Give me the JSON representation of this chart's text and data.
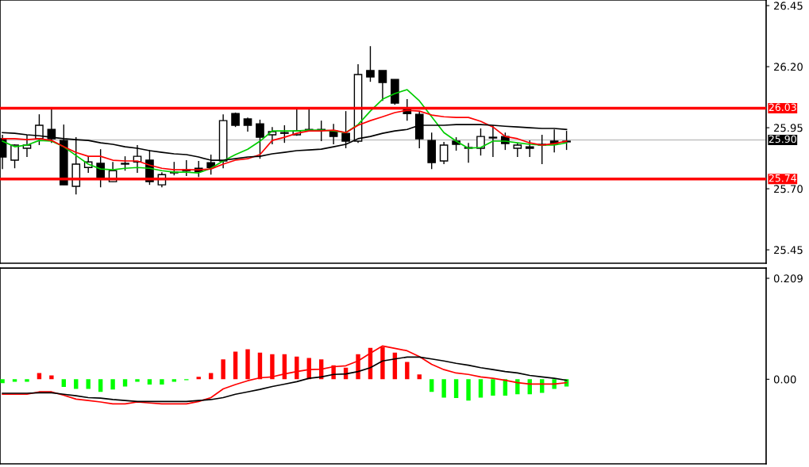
{
  "chart_data": [
    {
      "type": "candlestick",
      "categories": [
        null,
        null,
        null,
        null,
        null,
        null,
        null,
        null,
        null,
        null,
        null,
        null,
        null,
        null,
        null,
        null,
        null,
        null,
        null,
        null,
        null,
        null,
        null,
        null,
        null,
        null,
        null,
        null,
        null,
        null,
        null,
        null,
        null,
        null,
        null,
        null,
        null,
        null,
        null,
        null,
        null,
        null,
        null,
        null,
        null,
        null,
        null
      ],
      "ohlc": [
        [
          25.905,
          25.921,
          25.781,
          25.83
        ],
        [
          25.817,
          25.882,
          25.784,
          25.879
        ],
        [
          25.866,
          25.921,
          25.83,
          25.879
        ],
        [
          25.905,
          26.005,
          25.879,
          25.96
        ],
        [
          25.943,
          26.028,
          25.888,
          25.905
        ],
        [
          25.898,
          25.963,
          25.716,
          25.716
        ],
        [
          25.71,
          25.911,
          25.677,
          25.801
        ],
        [
          25.787,
          25.833,
          25.765,
          25.81
        ],
        [
          25.804,
          25.862,
          25.706,
          25.748
        ],
        [
          25.729,
          25.81,
          25.729,
          25.774
        ],
        [
          25.804,
          25.833,
          25.774,
          25.801
        ],
        [
          25.81,
          25.879,
          25.765,
          25.833
        ],
        [
          25.817,
          25.859,
          25.716,
          25.729
        ],
        [
          25.716,
          25.768,
          25.706,
          25.758
        ],
        [
          25.768,
          25.81,
          25.755,
          25.765
        ],
        [
          25.778,
          25.817,
          25.752,
          25.774
        ],
        [
          25.784,
          25.814,
          25.748,
          25.771
        ],
        [
          25.807,
          25.84,
          25.758,
          25.787
        ],
        [
          25.814,
          26.005,
          25.784,
          25.979
        ],
        [
          26.008,
          26.012,
          25.953,
          25.96
        ],
        [
          25.986,
          25.992,
          25.934,
          25.96
        ],
        [
          25.966,
          25.983,
          25.823,
          25.911
        ],
        [
          25.921,
          25.953,
          25.882,
          25.934
        ],
        [
          25.927,
          25.96,
          25.888,
          25.93
        ],
        [
          25.921,
          26.028,
          25.917,
          25.937
        ],
        [
          25.943,
          26.028,
          25.937,
          25.94
        ],
        [
          25.94,
          25.979,
          25.895,
          25.943
        ],
        [
          25.937,
          25.966,
          25.882,
          25.914
        ],
        [
          25.927,
          26.018,
          25.866,
          25.895
        ],
        [
          25.895,
          26.21,
          25.888,
          26.168
        ],
        [
          26.184,
          26.284,
          26.138,
          26.158
        ],
        [
          26.184,
          26.184,
          26.06,
          26.135
        ],
        [
          26.148,
          26.148,
          26.044,
          26.051
        ],
        [
          26.028,
          26.067,
          25.979,
          26.008
        ],
        [
          26.005,
          26.015,
          25.866,
          25.905
        ],
        [
          25.898,
          25.93,
          25.781,
          25.807
        ],
        [
          25.814,
          25.892,
          25.801,
          25.879
        ],
        [
          25.895,
          25.911,
          25.856,
          25.882
        ],
        [
          25.869,
          25.888,
          25.807,
          25.866
        ],
        [
          25.866,
          25.947,
          25.836,
          25.914
        ],
        [
          25.911,
          25.96,
          25.83,
          25.908
        ],
        [
          25.914,
          25.93,
          25.859,
          25.885
        ],
        [
          25.866,
          25.888,
          25.83,
          25.879
        ],
        [
          25.872,
          25.898,
          25.83,
          25.866
        ],
        [
          25.882,
          25.921,
          25.801,
          25.879
        ],
        [
          25.895,
          25.943,
          25.849,
          25.885
        ],
        [
          25.892,
          25.937,
          25.859,
          25.895
        ]
      ],
      "series": [
        {
          "type": "line",
          "color": "#00cc00",
          "values": [
            25.895,
            25.872,
            25.879,
            25.898,
            25.895,
            25.872,
            25.836,
            25.801,
            25.781,
            25.778,
            25.784,
            25.787,
            25.784,
            25.774,
            25.768,
            25.768,
            25.765,
            25.784,
            25.814,
            25.84,
            25.862,
            25.895,
            25.937,
            25.937,
            25.937,
            25.94,
            25.94,
            25.937,
            25.93,
            25.963,
            26.018,
            26.067,
            26.09,
            26.106,
            26.06,
            25.995,
            25.93,
            25.895,
            25.866,
            25.869,
            25.895,
            25.895,
            25.888,
            25.882,
            25.879,
            25.879,
            25.888
          ]
        },
        {
          "type": "line",
          "color": "#ff0000",
          "values": [
            25.905,
            25.905,
            25.901,
            25.905,
            25.898,
            25.872,
            25.849,
            25.833,
            25.833,
            25.817,
            25.814,
            25.814,
            25.797,
            25.784,
            25.778,
            25.778,
            25.778,
            25.781,
            25.801,
            25.817,
            25.823,
            25.84,
            25.898,
            25.911,
            25.927,
            25.937,
            25.937,
            25.94,
            25.93,
            25.96,
            25.979,
            25.995,
            26.012,
            26.021,
            26.018,
            26.002,
            25.995,
            25.992,
            25.992,
            25.976,
            25.953,
            25.914,
            25.905,
            25.888,
            25.879,
            25.885,
            25.895
          ]
        },
        {
          "type": "line",
          "color": "#000000",
          "values": [
            25.93,
            25.927,
            25.921,
            25.917,
            25.911,
            25.905,
            25.901,
            25.898,
            25.888,
            25.882,
            25.872,
            25.866,
            25.856,
            25.849,
            25.843,
            25.84,
            25.83,
            25.817,
            25.817,
            25.823,
            25.83,
            25.833,
            25.843,
            25.849,
            25.856,
            25.859,
            25.862,
            25.872,
            25.882,
            25.905,
            25.914,
            25.927,
            25.937,
            25.943,
            25.96,
            25.96,
            25.96,
            25.963,
            25.963,
            25.963,
            25.96,
            25.956,
            25.953,
            25.95,
            25.947,
            25.947,
            25.943
          ]
        }
      ],
      "ylim": [
        25.395,
        26.473
      ],
      "yticks": [
        25.45,
        {
          "value": 25.7,
          "label": "25.70"
        },
        25.95,
        {
          "value": 26.2,
          "label": "26.20"
        },
        26.45
      ],
      "ref_lines": [
        {
          "axis": "y",
          "value": 26.03,
          "label": "26.03",
          "color": "#ff0000"
        },
        {
          "axis": "y",
          "value": 25.74,
          "label": "25.74",
          "color": "#ff0000"
        },
        {
          "axis": "y",
          "value": 25.9,
          "label": "25.90",
          "color": "#c0c0c0"
        }
      ],
      "tick_labels": "y",
      "grid": false
    },
    {
      "type": "bar",
      "categories": [
        null,
        null,
        null,
        null,
        null,
        null,
        null,
        null,
        null,
        null,
        null,
        null,
        null,
        null,
        null,
        null,
        null,
        null,
        null,
        null,
        null,
        null,
        null,
        null,
        null,
        null,
        null,
        null,
        null,
        null,
        null,
        null,
        null,
        null,
        null,
        null,
        null,
        null,
        null,
        null,
        null,
        null,
        null,
        null,
        null,
        null,
        null
      ],
      "series": [
        {
          "type": "bar",
          "values": [
            -0.008,
            -0.005,
            -0.005,
            0.013,
            0.008,
            -0.016,
            -0.02,
            -0.02,
            -0.026,
            -0.021,
            -0.015,
            -0.005,
            -0.011,
            -0.011,
            -0.005,
            -0.002,
            0.005,
            0.013,
            0.041,
            0.057,
            0.062,
            0.055,
            0.052,
            0.052,
            0.047,
            0.044,
            0.041,
            0.029,
            0.024,
            0.052,
            0.065,
            0.067,
            0.055,
            0.036,
            0.01,
            -0.026,
            -0.038,
            -0.039,
            -0.044,
            -0.038,
            -0.034,
            -0.034,
            -0.031,
            -0.031,
            -0.028,
            -0.02,
            -0.015
          ],
          "colors": [
            "#00ff00",
            "#00ff00",
            "#00ff00",
            "#ff0000",
            "#ff0000",
            "#00ff00",
            "#00ff00",
            "#00ff00",
            "#00ff00",
            "#00ff00",
            "#00ff00",
            "#00ff00",
            "#00ff00",
            "#00ff00",
            "#00ff00",
            "#00ff00",
            "#ff0000",
            "#ff0000",
            "#ff0000",
            "#ff0000",
            "#ff0000",
            "#ff0000",
            "#ff0000",
            "#ff0000",
            "#ff0000",
            "#ff0000",
            "#ff0000",
            "#ff0000",
            "#ff0000",
            "#ff0000",
            "#ff0000",
            "#ff0000",
            "#ff0000",
            "#ff0000",
            "#ff0000",
            "#00ff00",
            "#00ff00",
            "#00ff00",
            "#00ff00",
            "#00ff00",
            "#00ff00",
            "#00ff00",
            "#00ff00",
            "#00ff00",
            "#00ff00",
            "#00ff00",
            "#00ff00"
          ]
        },
        {
          "type": "line",
          "color": "#ff0000",
          "values": [
            -0.031,
            -0.031,
            -0.031,
            -0.026,
            -0.026,
            -0.033,
            -0.041,
            -0.044,
            -0.047,
            -0.051,
            -0.051,
            -0.047,
            -0.049,
            -0.051,
            -0.051,
            -0.051,
            -0.046,
            -0.038,
            -0.02,
            -0.011,
            -0.003,
            0.003,
            0.005,
            0.011,
            0.016,
            0.02,
            0.021,
            0.026,
            0.028,
            0.038,
            0.054,
            0.069,
            0.064,
            0.059,
            0.047,
            0.031,
            0.02,
            0.013,
            0.01,
            0.005,
            0.002,
            -0.002,
            -0.007,
            -0.01,
            -0.01,
            -0.01,
            -0.007
          ]
        },
        {
          "type": "line",
          "color": "#000000",
          "values": [
            -0.029,
            -0.029,
            -0.029,
            -0.028,
            -0.028,
            -0.031,
            -0.034,
            -0.038,
            -0.039,
            -0.042,
            -0.044,
            -0.046,
            -0.046,
            -0.046,
            -0.046,
            -0.046,
            -0.044,
            -0.042,
            -0.038,
            -0.031,
            -0.026,
            -0.021,
            -0.015,
            -0.01,
            -0.005,
            0.002,
            0.005,
            0.01,
            0.011,
            0.016,
            0.024,
            0.038,
            0.042,
            0.046,
            0.046,
            0.042,
            0.038,
            0.033,
            0.029,
            0.024,
            0.02,
            0.016,
            0.013,
            0.008,
            0.005,
            0.002,
            -0.002
          ]
        }
      ],
      "ylim": [
        -0.175,
        0.23
      ],
      "yticks": [
        {
          "value": 0,
          "label": "0.00"
        },
        0.209
      ],
      "tick_labels": "y",
      "grid": false
    }
  ]
}
